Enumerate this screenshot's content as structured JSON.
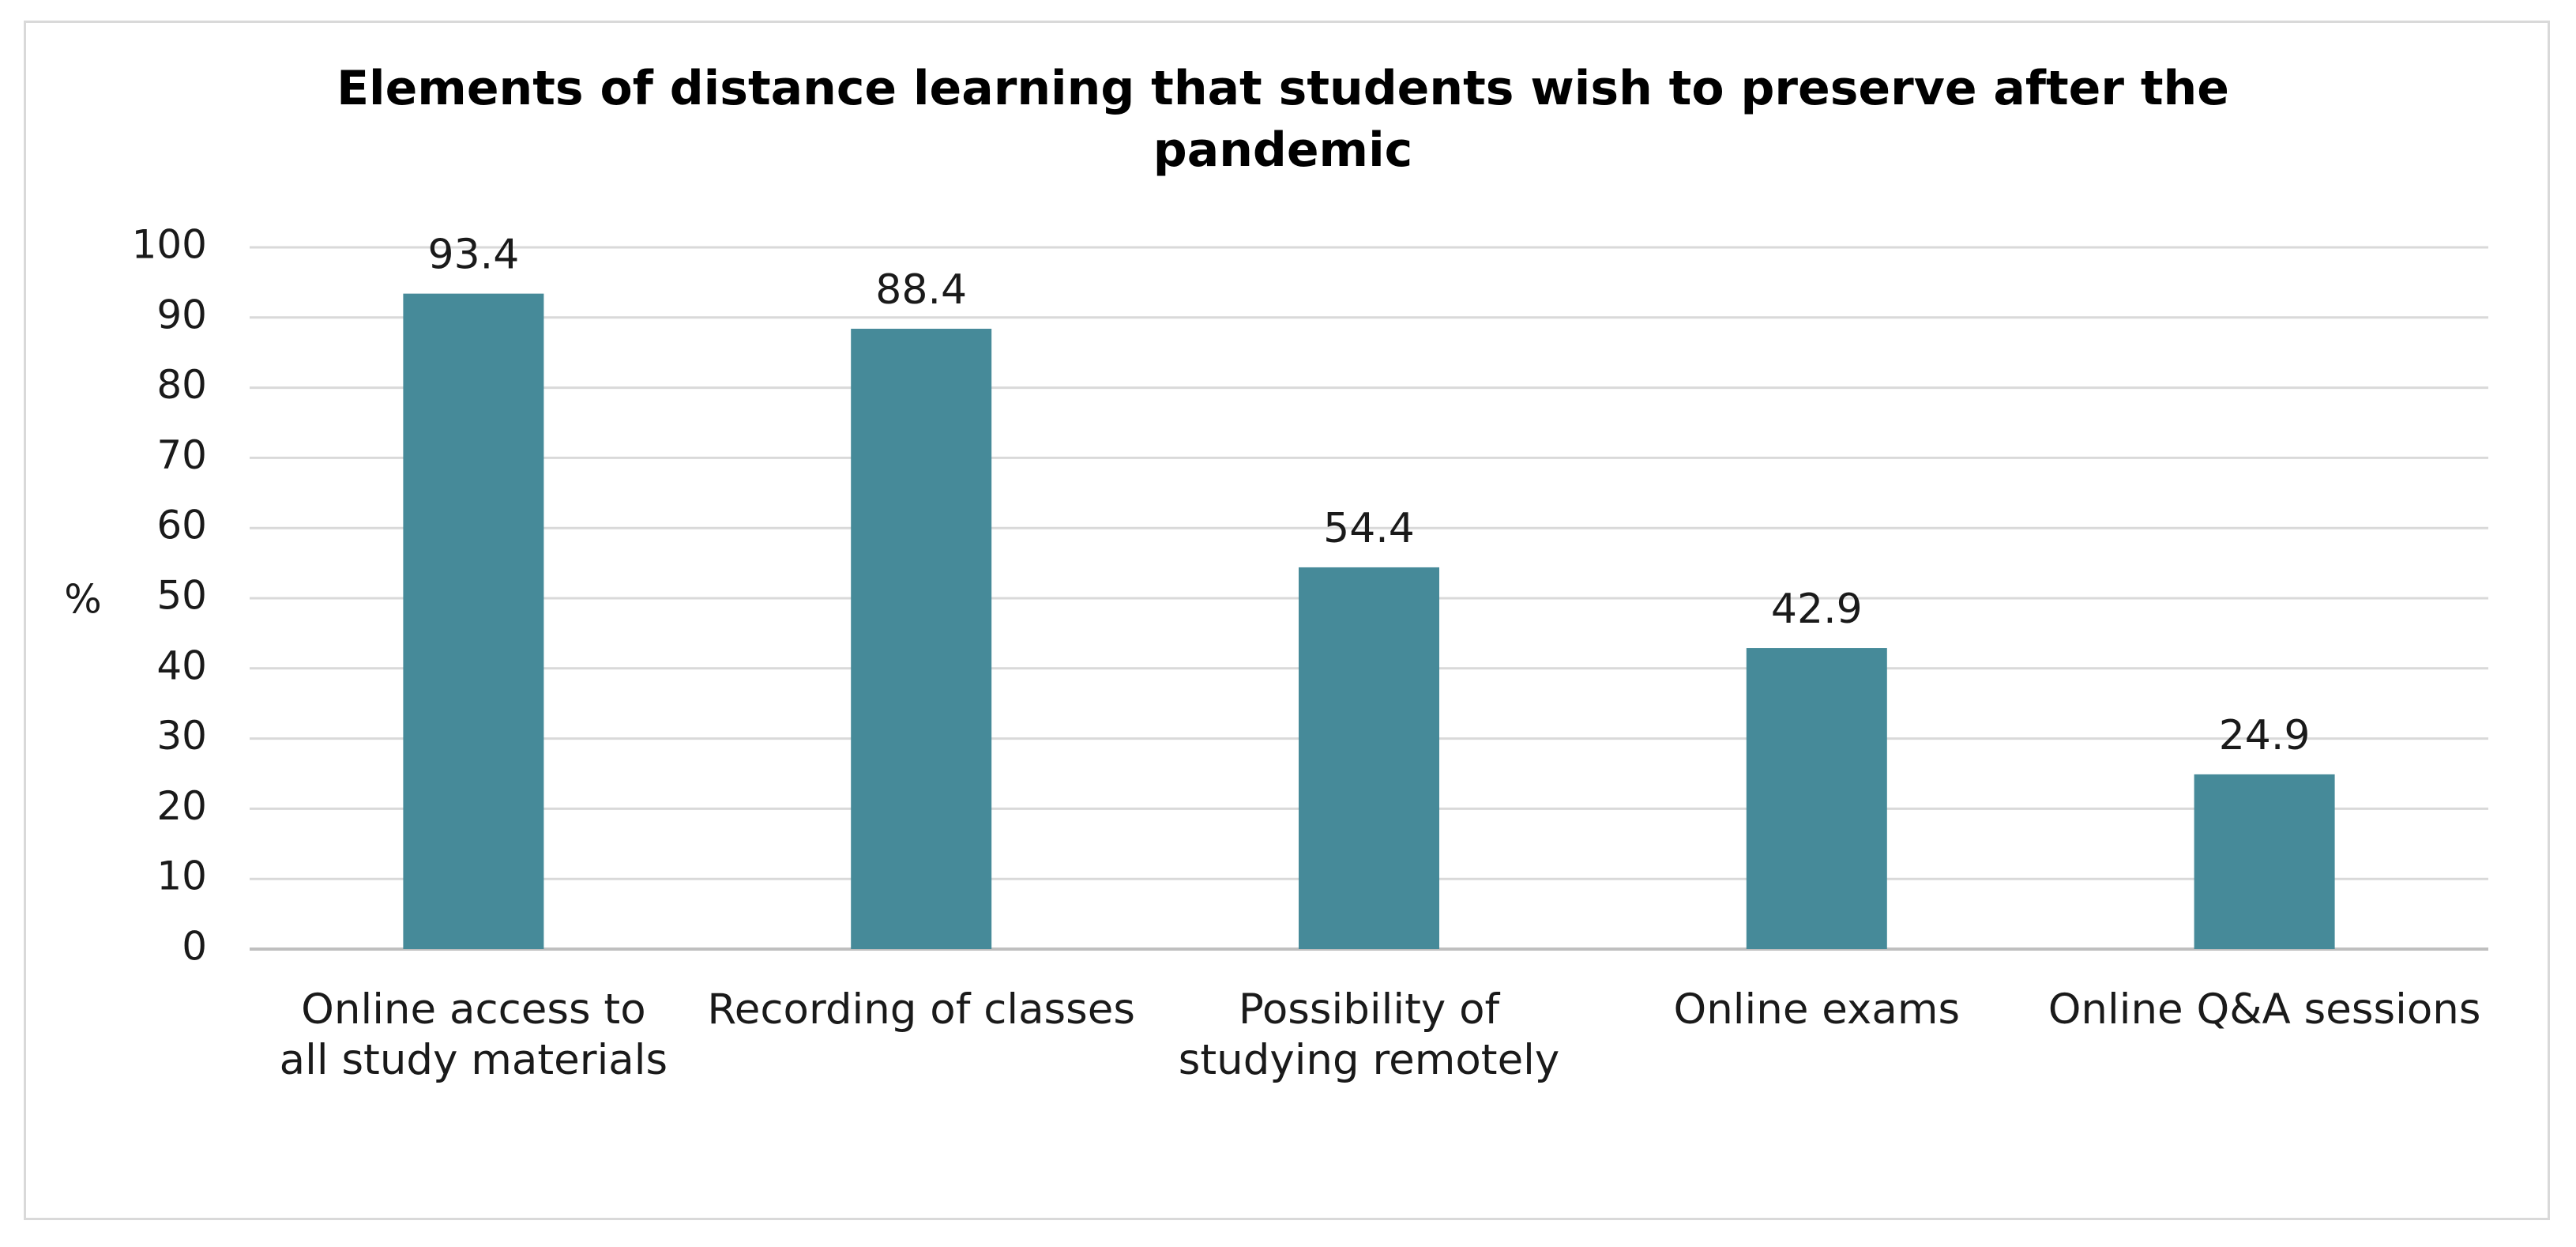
{
  "chart_data": {
    "type": "bar",
    "title": "Elements of distance learning that students wish to preserve after the pandemic",
    "title_lines": [
      "Elements of distance learning that students wish to preserve after the",
      "pandemic"
    ],
    "ylabel": "%",
    "xlabel": "",
    "ylim": [
      0,
      100
    ],
    "yticks": [
      0,
      10,
      20,
      30,
      40,
      50,
      60,
      70,
      80,
      90,
      100
    ],
    "grid": true,
    "legend": "none",
    "categories": [
      [
        "Online access to",
        "all study materials"
      ],
      [
        "Recording of classes"
      ],
      [
        "Possibility of",
        "studying remotely"
      ],
      [
        "Online exams"
      ],
      [
        "Online Q&A sessions"
      ]
    ],
    "values": [
      93.4,
      88.4,
      54.4,
      42.9,
      24.9
    ],
    "data_labels": [
      "93.4",
      "88.4",
      "54.4",
      "42.9",
      "24.9"
    ],
    "bar_color": "#468a99",
    "grid_color": "#d9d9d9"
  }
}
